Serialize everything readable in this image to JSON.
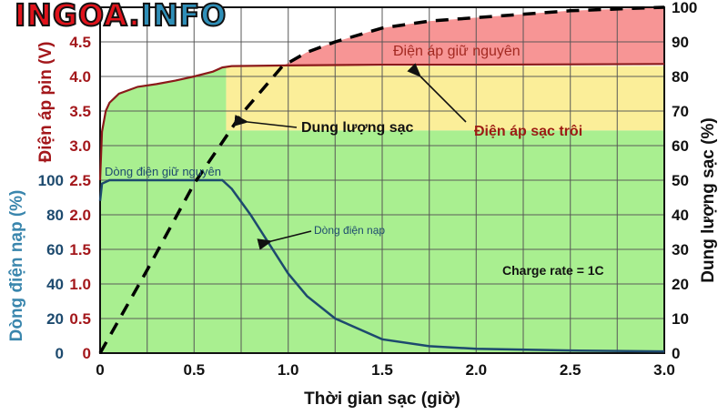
{
  "logo": {
    "part1": "INGOA.",
    "part2": "INFO"
  },
  "chart_data": {
    "type": "line",
    "xlabel": "Thời gian sạc (giờ)",
    "xlim": [
      0,
      3.0
    ],
    "x_ticks": [
      "0",
      "0.5",
      "1.0",
      "1.5",
      "2.0",
      "2.5",
      "3.0"
    ],
    "grid": true,
    "axes": {
      "left_voltage": {
        "label": "Điện áp pin (V)",
        "range": [
          0,
          5.0
        ],
        "ticks": [
          "0",
          "0.5",
          "1.0",
          "1.5",
          "2.0",
          "2.5",
          "3.0",
          "3.5",
          "4.0",
          "4.5"
        ],
        "color": "#a3171b"
      },
      "left_current": {
        "label": "Dòng điện nạp (%)",
        "range": [
          0,
          200
        ],
        "ticks": [
          "0",
          "20",
          "40",
          "60",
          "80",
          "100"
        ],
        "color": "#1d4a6e"
      },
      "right_capacity": {
        "label": "Dung lượng sạc (%)",
        "range": [
          0,
          100
        ],
        "ticks": [
          "0",
          "10",
          "20",
          "30",
          "40",
          "50",
          "60",
          "70",
          "80",
          "90",
          "100"
        ],
        "color": "#111111"
      }
    },
    "series": [
      {
        "axis": "left_voltage",
        "color": "#8b1a1a",
        "style": "solid",
        "x": [
          0,
          0.01,
          0.03,
          0.05,
          0.1,
          0.2,
          0.3,
          0.4,
          0.5,
          0.6,
          0.65,
          0.7,
          1.0,
          1.5,
          2.0,
          3.0
        ],
        "y": [
          2.5,
          3.2,
          3.5,
          3.62,
          3.75,
          3.85,
          3.89,
          3.94,
          4.0,
          4.07,
          4.13,
          4.15,
          4.16,
          4.17,
          4.17,
          4.18
        ]
      },
      {
        "axis": "left_current",
        "color": "#1d4a6e",
        "style": "solid",
        "x": [
          0,
          0.01,
          0.05,
          0.65,
          0.7,
          0.8,
          0.9,
          1.0,
          1.1,
          1.25,
          1.5,
          1.75,
          2.0,
          2.5,
          3.0
        ],
        "y": [
          88,
          98,
          100,
          100,
          95,
          80,
          63,
          46,
          33,
          20,
          8,
          4,
          2.5,
          1.5,
          1
        ]
      },
      {
        "axis": "right_capacity",
        "color": "#000000",
        "style": "dashed",
        "x": [
          0,
          0.25,
          0.5,
          0.75,
          0.97,
          1.1,
          1.25,
          1.5,
          1.75,
          2.0,
          2.5,
          3.0
        ],
        "y": [
          0,
          24,
          49,
          69,
          83,
          87,
          90,
          94,
          96,
          97,
          99,
          100
        ]
      }
    ],
    "regions": [
      {
        "name": "green",
        "color": "#a9ef90"
      },
      {
        "name": "yellow",
        "color": "#fbee99",
        "x": [
          0.67,
          3.0
        ],
        "voltage": [
          3.22,
          4.15
        ]
      },
      {
        "name": "red",
        "color": "#f79595"
      }
    ],
    "annotations": {
      "cv_label": "Điện áp giữ nguyên",
      "capacity_label": "Dung lượng sạc",
      "float_label": "Điện áp sạc trôi",
      "cc_label": "Dòng điện giữ nguyên",
      "current_label": "Dòng điện nạp",
      "rate_label": "Charge rate = 1C"
    }
  }
}
